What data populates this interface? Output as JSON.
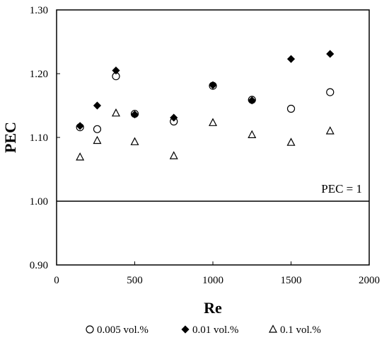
{
  "chart_data": {
    "type": "scatter",
    "xlabel": "Re",
    "ylabel": "PEC",
    "xlim": [
      0,
      2000
    ],
    "ylim": [
      0.9,
      1.3
    ],
    "xticks": [
      0,
      500,
      1000,
      1500,
      2000
    ],
    "xtick_labels": [
      "0",
      "500",
      "1000",
      "1500",
      "2000"
    ],
    "yticks": [
      0.9,
      1.0,
      1.1,
      1.2,
      1.3
    ],
    "ytick_labels": [
      "0.90",
      "1.00",
      "1.10",
      "1.20",
      "1.30"
    ],
    "grid": false,
    "legend_position": "bottom",
    "reference_line": {
      "y": 1.0,
      "label": "PEC = 1"
    },
    "series": [
      {
        "name": "0.005 vol.%",
        "marker": "circle-open",
        "color": "#000000",
        "x": [
          150,
          260,
          380,
          500,
          750,
          1000,
          1250,
          1500,
          1750
        ],
        "y": [
          1.116,
          1.113,
          1.196,
          1.137,
          1.125,
          1.181,
          1.159,
          1.145,
          1.171
        ]
      },
      {
        "name": "0.01 vol.%",
        "marker": "diamond-filled",
        "color": "#000000",
        "x": [
          150,
          260,
          380,
          500,
          750,
          1000,
          1250,
          1500,
          1750
        ],
        "y": [
          1.118,
          1.15,
          1.205,
          1.136,
          1.131,
          1.182,
          1.158,
          1.223,
          1.231
        ]
      },
      {
        "name": "0.1 vol.%",
        "marker": "triangle-open",
        "color": "#000000",
        "x": [
          150,
          260,
          380,
          500,
          750,
          1000,
          1250,
          1500,
          1750
        ],
        "y": [
          1.069,
          1.095,
          1.138,
          1.093,
          1.071,
          1.123,
          1.104,
          1.092,
          1.11
        ]
      }
    ]
  }
}
